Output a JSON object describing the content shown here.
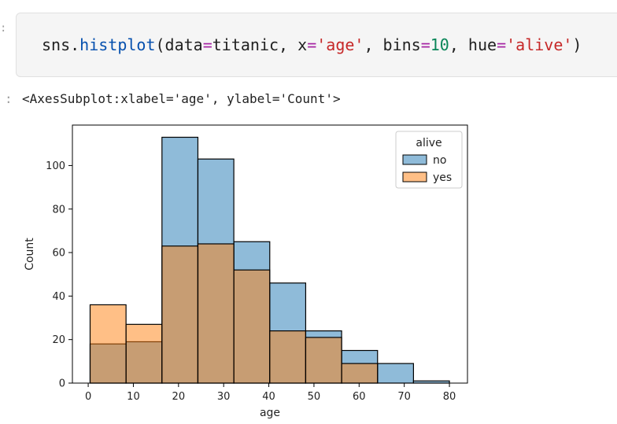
{
  "code_cell": {
    "prompt": ":",
    "tokens": {
      "t1": "sns.",
      "t2": "histplot",
      "t3": "(data",
      "t4": "=",
      "t5": "titanic, x",
      "t6": "=",
      "t7": "'age'",
      "t8": ", bins",
      "t9": "=",
      "t10": "10",
      "t11": ", hue",
      "t12": "=",
      "t13": "'alive'",
      "t14": ")"
    }
  },
  "output": {
    "prompt": ":",
    "text": "<AxesSubplot:xlabel='age', ylabel='Count'>"
  },
  "chart_data": {
    "type": "bar",
    "bin_edges": [
      0.42,
      8.378,
      16.336,
      24.294,
      32.252,
      40.21,
      48.168,
      56.126,
      64.084,
      72.042,
      80.0
    ],
    "series": [
      {
        "name": "no",
        "color": "#1f77b4",
        "values": [
          18,
          19,
          113,
          103,
          65,
          46,
          24,
          15,
          9,
          1
        ]
      },
      {
        "name": "yes",
        "color": "#ff7f0e",
        "values": [
          36,
          27,
          63,
          64,
          52,
          24,
          21,
          9,
          0,
          0
        ]
      }
    ],
    "overlap_color": "#8c9da4",
    "xlabel": "age",
    "ylabel": "Count",
    "xlim": [
      -3.5,
      84.0
    ],
    "ylim": [
      0,
      118.6
    ],
    "xticks": [
      0,
      10,
      20,
      30,
      40,
      50,
      60,
      70,
      80
    ],
    "yticks": [
      0,
      20,
      40,
      60,
      80,
      100
    ],
    "legend": {
      "title": "alive",
      "entries": [
        "no",
        "yes"
      ],
      "placement": "top-right"
    },
    "grid": false
  }
}
